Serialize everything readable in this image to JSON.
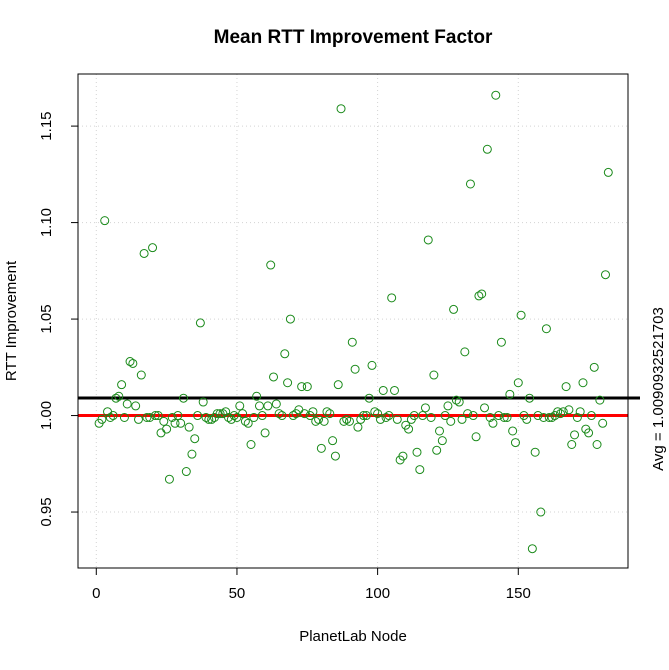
{
  "chart_data": {
    "type": "scatter",
    "title": "Mean RTT Improvement Factor",
    "xlabel": "PlanetLab Node",
    "ylabel": "RTT Improvement",
    "xlim": [
      -6.5,
      189
    ],
    "ylim": [
      0.921,
      1.177
    ],
    "x_ticks": [
      0,
      50,
      100,
      150
    ],
    "x_tick_labels": [
      "0",
      "50",
      "100",
      "150"
    ],
    "y_ticks": [
      0.95,
      1.0,
      1.05,
      1.1,
      1.15
    ],
    "y_tick_labels": [
      "0.95",
      "1.00",
      "1.05",
      "1.10",
      "1.15"
    ],
    "grid": true,
    "grid_style": "dotted",
    "point_color": "#1a8a1a",
    "avg_line": {
      "value": 1.0090932521703,
      "color": "#000000",
      "label": "Avg = 1.0090932521703"
    },
    "baseline_line": {
      "value": 1.0,
      "color": "#ff0000"
    },
    "points": [
      [
        1,
        0.996
      ],
      [
        2,
        0.998
      ],
      [
        3,
        1.101
      ],
      [
        4,
        1.002
      ],
      [
        5,
        0.999
      ],
      [
        6,
        1.0
      ],
      [
        7,
        1.009
      ],
      [
        8,
        1.01
      ],
      [
        9,
        1.016
      ],
      [
        10,
        0.999
      ],
      [
        11,
        1.006
      ],
      [
        12,
        1.028
      ],
      [
        13,
        1.027
      ],
      [
        14,
        1.005
      ],
      [
        15,
        0.998
      ],
      [
        16,
        1.021
      ],
      [
        17,
        1.084
      ],
      [
        18,
        0.999
      ],
      [
        19,
        0.999
      ],
      [
        20,
        1.087
      ],
      [
        21,
        1.0
      ],
      [
        22,
        1.0
      ],
      [
        23,
        0.991
      ],
      [
        24,
        0.997
      ],
      [
        25,
        0.993
      ],
      [
        26,
        0.967
      ],
      [
        27,
        0.999
      ],
      [
        28,
        0.996
      ],
      [
        29,
        1.0
      ],
      [
        30,
        0.996
      ],
      [
        31,
        1.009
      ],
      [
        32,
        0.971
      ],
      [
        33,
        0.994
      ],
      [
        34,
        0.98
      ],
      [
        35,
        0.988
      ],
      [
        36,
        1.0
      ],
      [
        37,
        1.048
      ],
      [
        38,
        1.007
      ],
      [
        39,
        0.999
      ],
      [
        40,
        0.998
      ],
      [
        41,
        0.998
      ],
      [
        42,
        0.999
      ],
      [
        43,
        1.001
      ],
      [
        44,
        1.001
      ],
      [
        45,
        1.001
      ],
      [
        46,
        1.002
      ],
      [
        47,
        0.999
      ],
      [
        48,
        0.998
      ],
      [
        49,
        1.0
      ],
      [
        50,
        0.999
      ],
      [
        51,
        1.005
      ],
      [
        52,
        1.001
      ],
      [
        53,
        0.997
      ],
      [
        54,
        0.996
      ],
      [
        55,
        0.985
      ],
      [
        56,
        0.999
      ],
      [
        57,
        1.01
      ],
      [
        58,
        1.005
      ],
      [
        59,
        1.0
      ],
      [
        60,
        0.991
      ],
      [
        61,
        1.005
      ],
      [
        62,
        1.078
      ],
      [
        63,
        1.02
      ],
      [
        64,
        1.006
      ],
      [
        65,
        1.001
      ],
      [
        66,
        1.0
      ],
      [
        67,
        1.032
      ],
      [
        68,
        1.017
      ],
      [
        69,
        1.05
      ],
      [
        70,
        1.0
      ],
      [
        71,
        1.001
      ],
      [
        72,
        1.003
      ],
      [
        73,
        1.015
      ],
      [
        74,
        1.001
      ],
      [
        75,
        1.015
      ],
      [
        76,
        1.0
      ],
      [
        77,
        1.002
      ],
      [
        78,
        0.997
      ],
      [
        79,
        0.998
      ],
      [
        80,
        0.983
      ],
      [
        81,
        0.997
      ],
      [
        82,
        1.002
      ],
      [
        83,
        1.001
      ],
      [
        84,
        0.987
      ],
      [
        85,
        0.979
      ],
      [
        86,
        1.016
      ],
      [
        87,
        1.159
      ],
      [
        88,
        0.997
      ],
      [
        89,
        0.998
      ],
      [
        90,
        0.997
      ],
      [
        91,
        1.038
      ],
      [
        92,
        1.024
      ],
      [
        93,
        0.994
      ],
      [
        94,
        0.998
      ],
      [
        95,
        1.0
      ],
      [
        96,
        1.0
      ],
      [
        97,
        1.009
      ],
      [
        98,
        1.026
      ],
      [
        99,
        1.002
      ],
      [
        100,
        1.001
      ],
      [
        101,
        0.998
      ],
      [
        102,
        1.013
      ],
      [
        103,
        0.999
      ],
      [
        104,
        1.0
      ],
      [
        105,
        1.061
      ],
      [
        106,
        1.013
      ],
      [
        107,
        0.998
      ],
      [
        108,
        0.977
      ],
      [
        109,
        0.979
      ],
      [
        110,
        0.995
      ],
      [
        111,
        0.993
      ],
      [
        112,
        0.998
      ],
      [
        113,
        1.0
      ],
      [
        114,
        0.981
      ],
      [
        115,
        0.972
      ],
      [
        116,
        1.0
      ],
      [
        117,
        1.004
      ],
      [
        118,
        1.091
      ],
      [
        119,
        0.999
      ],
      [
        120,
        1.021
      ],
      [
        121,
        0.982
      ],
      [
        122,
        0.992
      ],
      [
        123,
        0.987
      ],
      [
        124,
        1.0
      ],
      [
        125,
        1.005
      ],
      [
        126,
        0.997
      ],
      [
        127,
        1.055
      ],
      [
        128,
        1.008
      ],
      [
        129,
        1.007
      ],
      [
        130,
        0.998
      ],
      [
        131,
        1.033
      ],
      [
        132,
        1.001
      ],
      [
        133,
        1.12
      ],
      [
        134,
        1.0
      ],
      [
        135,
        0.989
      ],
      [
        136,
        1.062
      ],
      [
        137,
        1.063
      ],
      [
        138,
        1.004
      ],
      [
        139,
        1.138
      ],
      [
        140,
        0.999
      ],
      [
        141,
        0.996
      ],
      [
        142,
        1.166
      ],
      [
        143,
        1.0
      ],
      [
        144,
        1.038
      ],
      [
        145,
        0.999
      ],
      [
        146,
        0.999
      ],
      [
        147,
        1.011
      ],
      [
        148,
        0.992
      ],
      [
        149,
        0.986
      ],
      [
        150,
        1.017
      ],
      [
        151,
        1.052
      ],
      [
        152,
        1.0
      ],
      [
        153,
        0.998
      ],
      [
        154,
        1.009
      ],
      [
        155,
        0.931
      ],
      [
        156,
        0.981
      ],
      [
        157,
        1.0
      ],
      [
        158,
        0.95
      ],
      [
        159,
        0.999
      ],
      [
        160,
        1.045
      ],
      [
        161,
        0.999
      ],
      [
        162,
        0.999
      ],
      [
        163,
        1.0
      ],
      [
        164,
        1.002
      ],
      [
        165,
        1.001
      ],
      [
        166,
        1.002
      ],
      [
        167,
        1.015
      ],
      [
        168,
        1.003
      ],
      [
        169,
        0.985
      ],
      [
        170,
        0.99
      ],
      [
        171,
        0.999
      ],
      [
        172,
        1.002
      ],
      [
        173,
        1.017
      ],
      [
        174,
        0.993
      ],
      [
        175,
        0.991
      ],
      [
        176,
        1.0
      ],
      [
        177,
        1.025
      ],
      [
        178,
        0.985
      ],
      [
        179,
        1.008
      ],
      [
        180,
        0.996
      ],
      [
        181,
        1.073
      ],
      [
        182,
        1.126
      ]
    ]
  }
}
